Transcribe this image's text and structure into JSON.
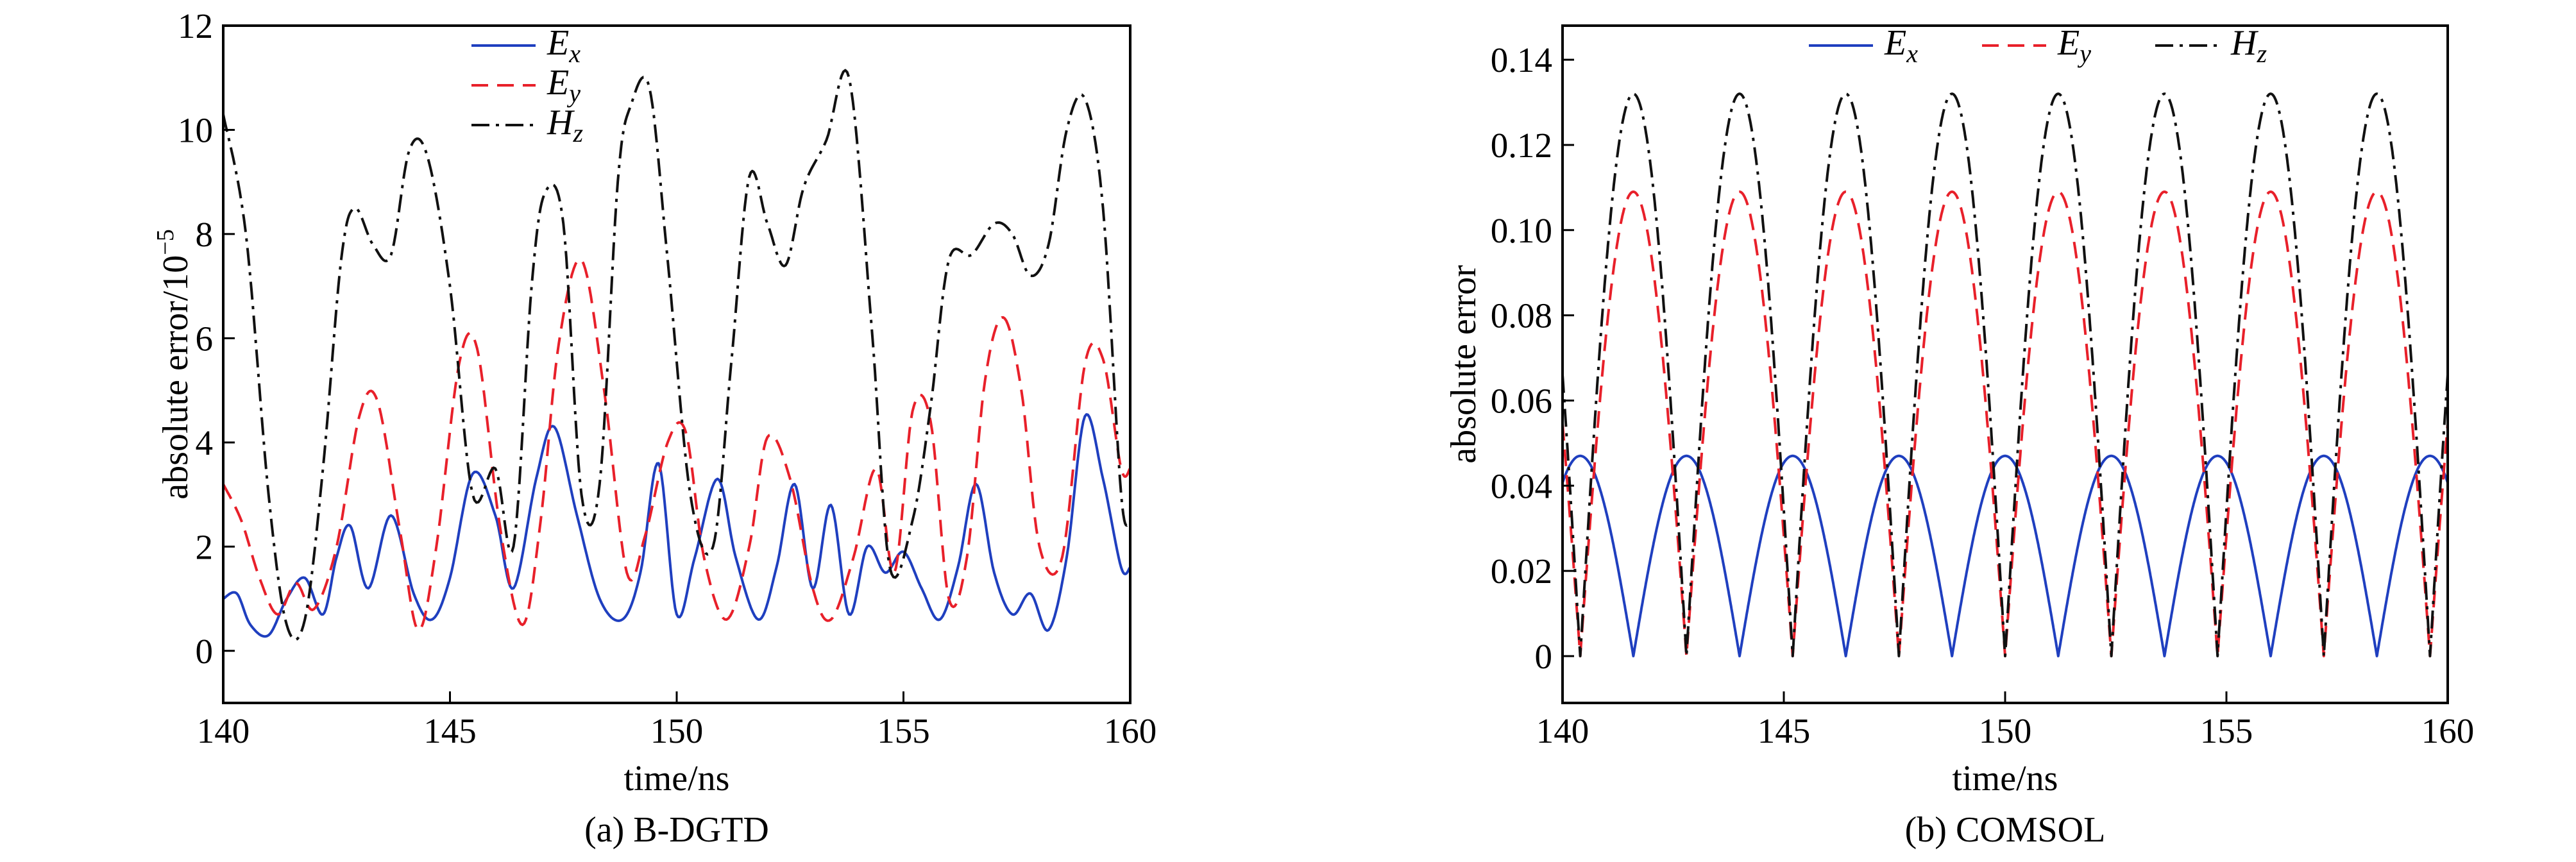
{
  "colors": {
    "ex": "#1f3fbf",
    "ey": "#e8202a",
    "hz": "#111111"
  },
  "chart_data": [
    {
      "type": "line",
      "caption": "(a) B-DGTD",
      "xlabel": "time/ns",
      "ylabel": "absolute error/10",
      "ylabel_exp": "−5",
      "xlim": [
        140,
        160
      ],
      "ylim": [
        -1,
        12
      ],
      "xticks": [
        140,
        145,
        150,
        155,
        160
      ],
      "yticks": [
        0,
        2,
        4,
        6,
        8,
        10,
        12
      ],
      "xtick_labels": [
        "140",
        "145",
        "150",
        "155",
        "160"
      ],
      "ytick_labels": [
        "0",
        "2",
        "4",
        "6",
        "8",
        "10",
        "12"
      ],
      "legend_placement": "top-center",
      "series": [
        {
          "name": "E",
          "sub": "x",
          "color_key": "ex",
          "dash": "solid",
          "x": [
            140.0,
            140.3,
            140.6,
            141.0,
            141.4,
            141.8,
            142.2,
            142.5,
            142.8,
            143.2,
            143.7,
            144.2,
            144.6,
            145.0,
            145.5,
            146.0,
            146.4,
            146.9,
            147.3,
            147.8,
            148.3,
            148.8,
            149.2,
            149.6,
            150.0,
            150.4,
            150.9,
            151.3,
            151.8,
            152.2,
            152.6,
            153.0,
            153.4,
            153.8,
            154.2,
            154.6,
            155.0,
            155.4,
            155.8,
            156.2,
            156.6,
            157.0,
            157.4,
            157.8,
            158.2,
            158.6,
            159.0,
            159.4,
            159.8,
            160.0
          ],
          "y": [
            1.0,
            1.1,
            0.5,
            0.3,
            1.0,
            1.4,
            0.7,
            1.8,
            2.4,
            1.2,
            2.6,
            1.1,
            0.6,
            1.4,
            3.4,
            2.6,
            1.2,
            3.3,
            4.3,
            2.6,
            1.0,
            0.6,
            1.5,
            3.6,
            0.7,
            1.8,
            3.3,
            1.8,
            0.6,
            1.6,
            3.2,
            1.2,
            2.8,
            0.7,
            2.0,
            1.5,
            1.9,
            1.2,
            0.6,
            1.6,
            3.2,
            1.5,
            0.7,
            1.1,
            0.4,
            1.8,
            4.5,
            3.3,
            1.6,
            1.6
          ]
        },
        {
          "name": "E",
          "sub": "y",
          "color_key": "ey",
          "dash": "dashed",
          "x": [
            140.0,
            140.4,
            140.8,
            141.2,
            141.6,
            142.0,
            142.5,
            143.0,
            143.4,
            143.9,
            144.3,
            144.7,
            145.2,
            145.6,
            146.1,
            146.6,
            147.0,
            147.4,
            147.9,
            148.4,
            148.9,
            149.3,
            149.8,
            150.2,
            150.6,
            151.1,
            151.6,
            152.0,
            152.5,
            153.0,
            153.4,
            153.9,
            154.4,
            154.8,
            155.2,
            155.6,
            156.0,
            156.4,
            156.8,
            157.2,
            157.6,
            158.0,
            158.5,
            159.0,
            159.4,
            159.8,
            160.0
          ],
          "y": [
            3.2,
            2.5,
            1.4,
            0.7,
            1.3,
            0.8,
            2.0,
            4.5,
            4.8,
            2.3,
            0.4,
            2.0,
            5.5,
            5.8,
            2.4,
            0.5,
            2.5,
            5.9,
            7.5,
            5.0,
            1.5,
            2.2,
            4.0,
            4.2,
            1.8,
            0.6,
            2.0,
            4.1,
            3.3,
            1.2,
            0.6,
            1.8,
            3.5,
            1.5,
            4.6,
            4.4,
            1.0,
            1.8,
            5.2,
            6.4,
            5.0,
            2.0,
            1.8,
            5.5,
            5.6,
            3.5,
            3.5
          ]
        },
        {
          "name": "H",
          "sub": "z",
          "color_key": "hz",
          "dash": "dashdot",
          "x": [
            140.0,
            140.5,
            141.0,
            141.4,
            141.8,
            142.2,
            142.6,
            142.9,
            143.3,
            143.7,
            144.1,
            144.5,
            145.0,
            145.5,
            146.0,
            146.4,
            146.8,
            147.1,
            147.5,
            147.9,
            148.3,
            148.7,
            149.0,
            149.4,
            149.8,
            150.3,
            150.8,
            151.2,
            151.6,
            152.0,
            152.4,
            152.8,
            153.3,
            153.8,
            154.3,
            154.7,
            155.2,
            155.6,
            156.0,
            156.5,
            157.0,
            157.4,
            157.8,
            158.2,
            158.6,
            159.0,
            159.4,
            159.8,
            160.0
          ],
          "y": [
            10.3,
            8.0,
            3.0,
            0.5,
            0.6,
            3.5,
            7.5,
            8.5,
            7.8,
            7.6,
            9.6,
            9.5,
            7.0,
            3.0,
            3.5,
            2.0,
            7.0,
            8.8,
            8.2,
            3.0,
            3.2,
            9.0,
            10.5,
            10.8,
            7.5,
            3.0,
            2.0,
            5.5,
            9.1,
            8.2,
            7.4,
            8.9,
            9.8,
            11.0,
            6.2,
            1.6,
            2.5,
            4.7,
            7.5,
            7.6,
            8.2,
            8.0,
            7.2,
            7.8,
            10.0,
            10.6,
            8.5,
            3.0,
            2.5
          ]
        }
      ]
    },
    {
      "type": "line",
      "caption": "(b) COMSOL",
      "xlabel": "time/ns",
      "ylabel": "absolute error",
      "xlim": [
        140,
        160
      ],
      "ylim": [
        -0.011,
        0.148
      ],
      "xticks": [
        140,
        145,
        150,
        155,
        160
      ],
      "yticks": [
        0,
        0.02,
        0.04,
        0.06,
        0.08,
        0.1,
        0.12,
        0.14
      ],
      "xtick_labels": [
        "140",
        "145",
        "150",
        "155",
        "160"
      ],
      "ytick_labels": [
        "0",
        "0.02",
        "0.04",
        "0.06",
        "0.08",
        "0.10",
        "0.12",
        "0.14"
      ],
      "legend_placement": "top-center",
      "series": [
        {
          "name": "E",
          "sub": "x",
          "color_key": "ex",
          "dash": "solid",
          "model": "abs-sine",
          "amplitude": 0.047,
          "period": 2.4,
          "zeros_at": 141.6
        },
        {
          "name": "E",
          "sub": "y",
          "color_key": "ey",
          "dash": "dashed",
          "model": "abs-sine",
          "amplitude": 0.109,
          "period": 2.4,
          "zeros_at": 142.8
        },
        {
          "name": "H",
          "sub": "z",
          "color_key": "hz",
          "dash": "dashdot",
          "model": "abs-sine",
          "amplitude": 0.132,
          "period": 2.4,
          "zeros_at": 140.4
        }
      ]
    }
  ]
}
